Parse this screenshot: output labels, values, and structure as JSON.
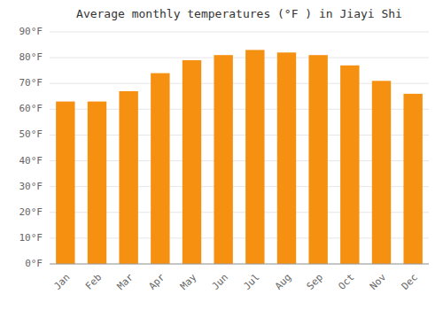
{
  "chart_data": {
    "type": "bar",
    "title": "Average monthly temperatures (°F ) in Jiayi Shi",
    "categories": [
      "Jan",
      "Feb",
      "Mar",
      "Apr",
      "May",
      "Jun",
      "Jul",
      "Aug",
      "Sep",
      "Oct",
      "Nov",
      "Dec"
    ],
    "values": [
      63,
      63,
      67,
      74,
      79,
      81,
      83,
      82,
      81,
      77,
      71,
      66
    ],
    "color": "#F59010",
    "ylim": [
      0,
      90
    ],
    "yticks": [
      {
        "value": 0,
        "label": "0°F"
      },
      {
        "value": 10,
        "label": "10°F"
      },
      {
        "value": 20,
        "label": "20°F"
      },
      {
        "value": 30,
        "label": "30°F"
      },
      {
        "value": 40,
        "label": "40°F"
      },
      {
        "value": 50,
        "label": "50°F"
      },
      {
        "value": 60,
        "label": "60°F"
      },
      {
        "value": 70,
        "label": "70°F"
      },
      {
        "value": 80,
        "label": "80°F"
      },
      {
        "value": 90,
        "label": "90°F"
      }
    ],
    "grid": true
  }
}
